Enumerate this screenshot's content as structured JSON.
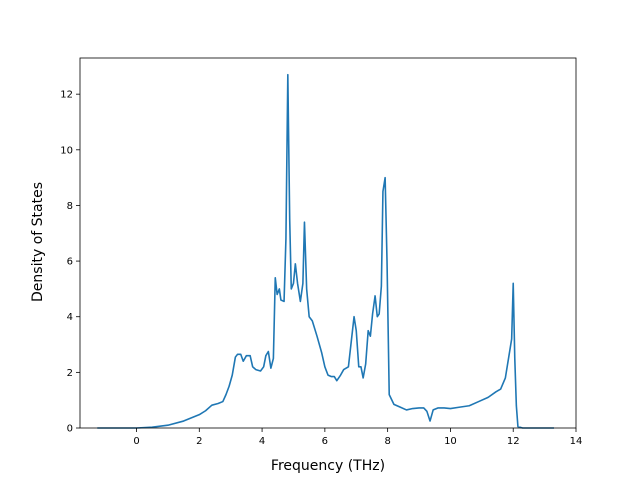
{
  "chart_data": {
    "type": "line",
    "title": "",
    "xlabel": "Frequency (THz)",
    "ylabel": "Density of States",
    "xlim": [
      -1.8,
      14.0
    ],
    "ylim": [
      0,
      13.3
    ],
    "x_ticks": [
      0,
      2,
      4,
      6,
      8,
      10,
      12,
      14
    ],
    "y_ticks": [
      0,
      2,
      4,
      6,
      8,
      10,
      12
    ],
    "grid": false,
    "legend": "none",
    "series": [
      {
        "color": "#1f77b4",
        "points": [
          [
            -1.25,
            0.0
          ],
          [
            0.0,
            0.0
          ],
          [
            0.5,
            0.03
          ],
          [
            1.0,
            0.1
          ],
          [
            1.5,
            0.25
          ],
          [
            2.0,
            0.48
          ],
          [
            2.2,
            0.62
          ],
          [
            2.4,
            0.82
          ],
          [
            2.6,
            0.88
          ],
          [
            2.75,
            0.95
          ],
          [
            2.85,
            1.2
          ],
          [
            2.95,
            1.5
          ],
          [
            3.05,
            1.9
          ],
          [
            3.15,
            2.55
          ],
          [
            3.22,
            2.65
          ],
          [
            3.32,
            2.65
          ],
          [
            3.4,
            2.4
          ],
          [
            3.5,
            2.6
          ],
          [
            3.62,
            2.6
          ],
          [
            3.7,
            2.2
          ],
          [
            3.8,
            2.1
          ],
          [
            3.95,
            2.05
          ],
          [
            4.05,
            2.2
          ],
          [
            4.12,
            2.6
          ],
          [
            4.2,
            2.75
          ],
          [
            4.28,
            2.15
          ],
          [
            4.36,
            2.5
          ],
          [
            4.42,
            5.4
          ],
          [
            4.48,
            4.8
          ],
          [
            4.55,
            5.0
          ],
          [
            4.6,
            4.6
          ],
          [
            4.7,
            4.55
          ],
          [
            4.76,
            6.8
          ],
          [
            4.82,
            12.7
          ],
          [
            4.88,
            7.5
          ],
          [
            4.93,
            5.0
          ],
          [
            5.0,
            5.2
          ],
          [
            5.06,
            5.9
          ],
          [
            5.13,
            5.2
          ],
          [
            5.22,
            4.55
          ],
          [
            5.3,
            5.2
          ],
          [
            5.35,
            7.4
          ],
          [
            5.42,
            5.0
          ],
          [
            5.5,
            4.0
          ],
          [
            5.6,
            3.85
          ],
          [
            5.75,
            3.3
          ],
          [
            5.9,
            2.7
          ],
          [
            6.0,
            2.2
          ],
          [
            6.1,
            1.9
          ],
          [
            6.2,
            1.85
          ],
          [
            6.3,
            1.85
          ],
          [
            6.38,
            1.7
          ],
          [
            6.5,
            1.9
          ],
          [
            6.6,
            2.1
          ],
          [
            6.75,
            2.2
          ],
          [
            6.85,
            3.2
          ],
          [
            6.93,
            4.0
          ],
          [
            7.0,
            3.5
          ],
          [
            7.08,
            2.2
          ],
          [
            7.15,
            2.2
          ],
          [
            7.22,
            1.8
          ],
          [
            7.3,
            2.3
          ],
          [
            7.38,
            3.5
          ],
          [
            7.45,
            3.3
          ],
          [
            7.52,
            4.1
          ],
          [
            7.6,
            4.75
          ],
          [
            7.67,
            4.0
          ],
          [
            7.73,
            4.1
          ],
          [
            7.8,
            5.1
          ],
          [
            7.85,
            8.5
          ],
          [
            7.92,
            9.0
          ],
          [
            7.98,
            6.0
          ],
          [
            8.05,
            1.2
          ],
          [
            8.2,
            0.85
          ],
          [
            8.4,
            0.75
          ],
          [
            8.6,
            0.65
          ],
          [
            8.8,
            0.7
          ],
          [
            9.0,
            0.72
          ],
          [
            9.15,
            0.72
          ],
          [
            9.25,
            0.6
          ],
          [
            9.35,
            0.25
          ],
          [
            9.45,
            0.65
          ],
          [
            9.6,
            0.72
          ],
          [
            9.8,
            0.72
          ],
          [
            10.0,
            0.7
          ],
          [
            10.3,
            0.75
          ],
          [
            10.6,
            0.8
          ],
          [
            10.9,
            0.95
          ],
          [
            11.2,
            1.1
          ],
          [
            11.45,
            1.3
          ],
          [
            11.6,
            1.4
          ],
          [
            11.75,
            1.8
          ],
          [
            11.85,
            2.5
          ],
          [
            11.95,
            3.2
          ],
          [
            12.0,
            5.2
          ],
          [
            12.05,
            2.5
          ],
          [
            12.1,
            0.8
          ],
          [
            12.15,
            0.05
          ],
          [
            12.3,
            0.0
          ],
          [
            13.3,
            0.0
          ]
        ]
      }
    ]
  }
}
